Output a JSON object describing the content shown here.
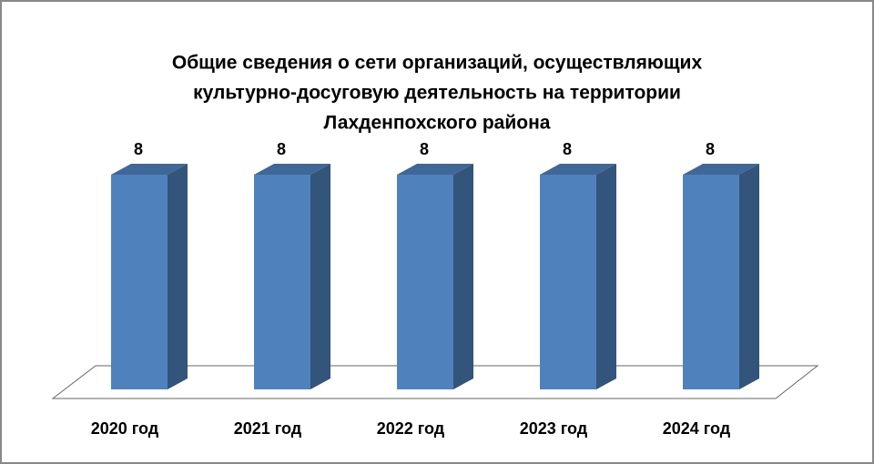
{
  "chart_data": {
    "type": "bar3d",
    "title": [
      "Общие сведения о сети организаций, осуществляющих",
      "культурно-досуговую деятельность на территории",
      "Лахденпохского района"
    ],
    "categories": [
      "2020 год",
      "2021 год",
      "2022 год",
      "2023 год",
      "2024 год"
    ],
    "values": [
      8,
      8,
      8,
      8,
      8
    ],
    "color": "#4f81bd"
  }
}
